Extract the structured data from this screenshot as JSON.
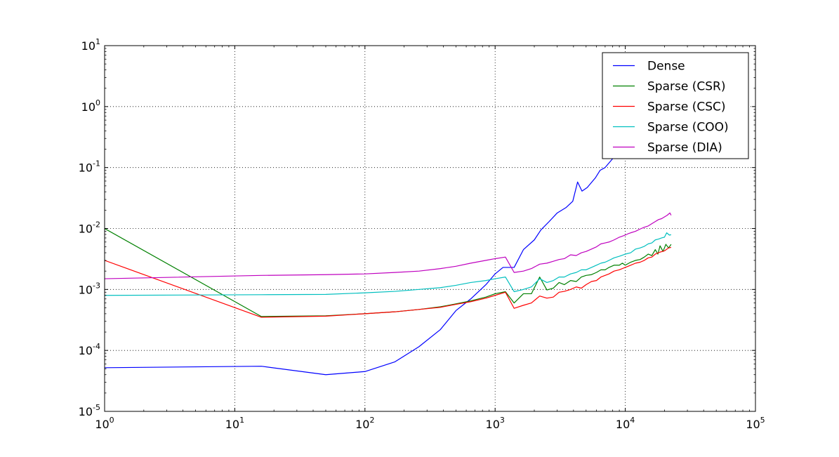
{
  "chart_data": {
    "type": "line",
    "title": "",
    "xlabel": "",
    "ylabel": "",
    "x_scale": "log",
    "y_scale": "log",
    "xlim": [
      1,
      100000
    ],
    "ylim": [
      1e-05,
      10
    ],
    "grid": true,
    "legend_position": "top-right",
    "x_ticks": [
      {
        "value": 1,
        "base": "10",
        "exp": "0"
      },
      {
        "value": 10,
        "base": "10",
        "exp": "1"
      },
      {
        "value": 100,
        "base": "10",
        "exp": "2"
      },
      {
        "value": 1000,
        "base": "10",
        "exp": "3"
      },
      {
        "value": 10000,
        "base": "10",
        "exp": "4"
      },
      {
        "value": 100000,
        "base": "10",
        "exp": "5"
      }
    ],
    "y_ticks": [
      {
        "value": 1e-05,
        "base": "10",
        "exp": "-5"
      },
      {
        "value": 0.0001,
        "base": "10",
        "exp": "-4"
      },
      {
        "value": 0.001,
        "base": "10",
        "exp": "-3"
      },
      {
        "value": 0.01,
        "base": "10",
        "exp": "-2"
      },
      {
        "value": 0.1,
        "base": "10",
        "exp": "-1"
      },
      {
        "value": 1,
        "base": "10",
        "exp": "0"
      },
      {
        "value": 10,
        "base": "10",
        "exp": "1"
      }
    ],
    "series": [
      {
        "name": "Dense",
        "color": "#0000ff",
        "points": [
          [
            1,
            5.2e-05
          ],
          [
            16,
            5.5e-05
          ],
          [
            50,
            4e-05
          ],
          [
            100,
            4.5e-05
          ],
          [
            170,
            6.5e-05
          ],
          [
            260,
            0.000115
          ],
          [
            380,
            0.00022
          ],
          [
            500,
            0.00045
          ],
          [
            650,
            0.0007
          ],
          [
            850,
            0.0012
          ],
          [
            1000,
            0.0018
          ],
          [
            1150,
            0.0023
          ],
          [
            1250,
            0.0023
          ],
          [
            1400,
            0.0023
          ],
          [
            1650,
            0.0045
          ],
          [
            2000,
            0.0065
          ],
          [
            2250,
            0.0095
          ],
          [
            2600,
            0.013
          ],
          [
            3000,
            0.018
          ],
          [
            3500,
            0.022
          ],
          [
            3950,
            0.028
          ],
          [
            4300,
            0.058
          ],
          [
            4650,
            0.041
          ],
          [
            5100,
            0.047
          ],
          [
            5900,
            0.068
          ],
          [
            6400,
            0.09
          ],
          [
            7000,
            0.1
          ],
          [
            8000,
            0.14
          ],
          [
            8500,
            0.17
          ]
        ]
      },
      {
        "name": "Sparse (CSR)",
        "color": "#008000",
        "points": [
          [
            1,
            0.01
          ],
          [
            16,
            0.00036
          ],
          [
            50,
            0.00037
          ],
          [
            100,
            0.0004
          ],
          [
            170,
            0.00043
          ],
          [
            260,
            0.00047
          ],
          [
            380,
            0.00052
          ],
          [
            500,
            0.00058
          ],
          [
            650,
            0.00065
          ],
          [
            850,
            0.00075
          ],
          [
            1000,
            0.00085
          ],
          [
            1200,
            0.00092
          ],
          [
            1400,
            0.0006
          ],
          [
            1650,
            0.00085
          ],
          [
            1900,
            0.00085
          ],
          [
            2200,
            0.0016
          ],
          [
            2500,
            0.00098
          ],
          [
            2800,
            0.00105
          ],
          [
            3100,
            0.0013
          ],
          [
            3400,
            0.0012
          ],
          [
            3800,
            0.0014
          ],
          [
            4200,
            0.00135
          ],
          [
            4600,
            0.0016
          ],
          [
            5000,
            0.0017
          ],
          [
            5500,
            0.00175
          ],
          [
            6000,
            0.0019
          ],
          [
            6500,
            0.0021
          ],
          [
            7000,
            0.0021
          ],
          [
            7500,
            0.0023
          ],
          [
            8200,
            0.0025
          ],
          [
            9000,
            0.0025
          ],
          [
            9500,
            0.0027
          ],
          [
            10000,
            0.0025
          ],
          [
            11000,
            0.0028
          ],
          [
            12000,
            0.003
          ],
          [
            13000,
            0.0031
          ],
          [
            14000,
            0.0034
          ],
          [
            15000,
            0.0038
          ],
          [
            16000,
            0.0036
          ],
          [
            17000,
            0.0045
          ],
          [
            17800,
            0.0038
          ],
          [
            18500,
            0.0052
          ],
          [
            19500,
            0.0042
          ],
          [
            20500,
            0.0055
          ],
          [
            21500,
            0.0048
          ],
          [
            22500,
            0.0055
          ]
        ]
      },
      {
        "name": "Sparse (CSC)",
        "color": "#ff0000",
        "points": [
          [
            1,
            0.003
          ],
          [
            16,
            0.00035
          ],
          [
            50,
            0.000365
          ],
          [
            100,
            0.0004
          ],
          [
            170,
            0.00043
          ],
          [
            260,
            0.00047
          ],
          [
            380,
            0.00051
          ],
          [
            500,
            0.00057
          ],
          [
            650,
            0.00063
          ],
          [
            850,
            0.00072
          ],
          [
            1000,
            0.0008
          ],
          [
            1200,
            0.0009
          ],
          [
            1400,
            0.00049
          ],
          [
            1650,
            0.00055
          ],
          [
            1900,
            0.0006
          ],
          [
            2200,
            0.00078
          ],
          [
            2500,
            0.00072
          ],
          [
            2800,
            0.00075
          ],
          [
            3100,
            0.0009
          ],
          [
            3400,
            0.00093
          ],
          [
            3800,
            0.001
          ],
          [
            4200,
            0.0011
          ],
          [
            4600,
            0.00105
          ],
          [
            5000,
            0.0012
          ],
          [
            5500,
            0.00135
          ],
          [
            6000,
            0.0014
          ],
          [
            6500,
            0.0016
          ],
          [
            7000,
            0.0017
          ],
          [
            7500,
            0.0018
          ],
          [
            8200,
            0.002
          ],
          [
            9000,
            0.0021
          ],
          [
            10000,
            0.0023
          ],
          [
            11000,
            0.0025
          ],
          [
            12000,
            0.0027
          ],
          [
            13000,
            0.0028
          ],
          [
            14000,
            0.003
          ],
          [
            15000,
            0.0033
          ],
          [
            16000,
            0.0034
          ],
          [
            17000,
            0.0038
          ],
          [
            18500,
            0.0041
          ],
          [
            20000,
            0.0043
          ],
          [
            21500,
            0.0048
          ],
          [
            22500,
            0.0049
          ]
        ]
      },
      {
        "name": "Sparse (COO)",
        "color": "#00bfbf",
        "points": [
          [
            1,
            0.0008
          ],
          [
            16,
            0.00082
          ],
          [
            50,
            0.00083
          ],
          [
            100,
            0.00088
          ],
          [
            170,
            0.00093
          ],
          [
            260,
            0.001
          ],
          [
            380,
            0.00107
          ],
          [
            500,
            0.00117
          ],
          [
            650,
            0.0013
          ],
          [
            850,
            0.0014
          ],
          [
            1000,
            0.0015
          ],
          [
            1200,
            0.0016
          ],
          [
            1400,
            0.00092
          ],
          [
            1650,
            0.001
          ],
          [
            1900,
            0.0011
          ],
          [
            2200,
            0.0015
          ],
          [
            2500,
            0.0013
          ],
          [
            2800,
            0.0014
          ],
          [
            3100,
            0.0016
          ],
          [
            3400,
            0.0016
          ],
          [
            3800,
            0.0018
          ],
          [
            4200,
            0.0019
          ],
          [
            4600,
            0.0021
          ],
          [
            5000,
            0.0021
          ],
          [
            5500,
            0.0023
          ],
          [
            6000,
            0.0025
          ],
          [
            6500,
            0.0027
          ],
          [
            7000,
            0.0028
          ],
          [
            7500,
            0.003
          ],
          [
            8200,
            0.0033
          ],
          [
            9000,
            0.0035
          ],
          [
            10000,
            0.0038
          ],
          [
            11000,
            0.004
          ],
          [
            12000,
            0.0046
          ],
          [
            13000,
            0.0048
          ],
          [
            14000,
            0.0051
          ],
          [
            15000,
            0.0056
          ],
          [
            16000,
            0.0058
          ],
          [
            17000,
            0.0065
          ],
          [
            18000,
            0.0067
          ],
          [
            19000,
            0.007
          ],
          [
            20000,
            0.0072
          ],
          [
            20800,
            0.0085
          ],
          [
            21800,
            0.0078
          ],
          [
            22500,
            0.0079
          ]
        ]
      },
      {
        "name": "Sparse (DIA)",
        "color": "#bf00bf",
        "points": [
          [
            1,
            0.0015
          ],
          [
            16,
            0.0017
          ],
          [
            50,
            0.00175
          ],
          [
            100,
            0.0018
          ],
          [
            170,
            0.0019
          ],
          [
            260,
            0.002
          ],
          [
            380,
            0.0022
          ],
          [
            500,
            0.0024
          ],
          [
            650,
            0.0027
          ],
          [
            850,
            0.003
          ],
          [
            1000,
            0.0032
          ],
          [
            1200,
            0.0034
          ],
          [
            1400,
            0.0019
          ],
          [
            1650,
            0.002
          ],
          [
            1900,
            0.0022
          ],
          [
            2200,
            0.0026
          ],
          [
            2500,
            0.0027
          ],
          [
            2800,
            0.0029
          ],
          [
            3100,
            0.0031
          ],
          [
            3400,
            0.0032
          ],
          [
            3800,
            0.0037
          ],
          [
            4200,
            0.0036
          ],
          [
            4600,
            0.004
          ],
          [
            5000,
            0.0042
          ],
          [
            5500,
            0.0046
          ],
          [
            6000,
            0.005
          ],
          [
            6500,
            0.0056
          ],
          [
            7000,
            0.0058
          ],
          [
            7500,
            0.006
          ],
          [
            8200,
            0.0065
          ],
          [
            9000,
            0.0072
          ],
          [
            10000,
            0.0078
          ],
          [
            10500,
            0.0082
          ],
          [
            11000,
            0.0085
          ],
          [
            12000,
            0.009
          ],
          [
            13000,
            0.0098
          ],
          [
            14000,
            0.0105
          ],
          [
            15000,
            0.011
          ],
          [
            16000,
            0.012
          ],
          [
            17000,
            0.013
          ],
          [
            18000,
            0.014
          ],
          [
            19000,
            0.0145
          ],
          [
            20000,
            0.0155
          ],
          [
            21000,
            0.0165
          ],
          [
            22000,
            0.018
          ],
          [
            22500,
            0.0165
          ]
        ]
      }
    ]
  }
}
